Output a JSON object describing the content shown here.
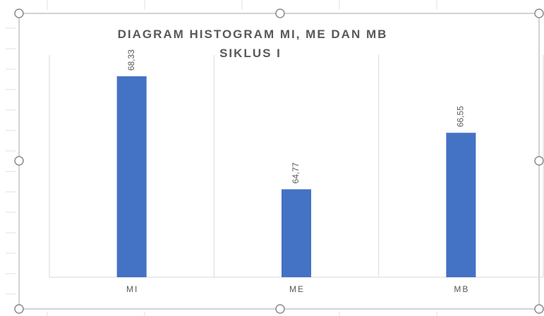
{
  "chart_data": {
    "type": "bar",
    "title": "DIAGRAM HISTOGRAM MI, ME DAN MB\nSIKLUS I",
    "categories": [
      "MI",
      "ME",
      "MB"
    ],
    "values": [
      68.33,
      64.77,
      66.55
    ],
    "value_labels": [
      "68,33",
      "64,77",
      "66,55"
    ],
    "color": "#4472c4",
    "ylim": [
      62,
      69
    ]
  }
}
